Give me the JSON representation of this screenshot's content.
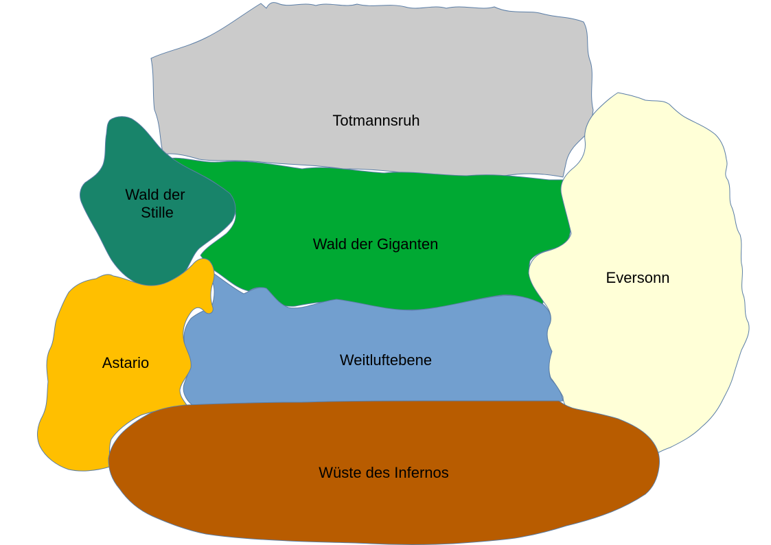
{
  "map": {
    "regions": [
      {
        "id": "totmannsruh",
        "label_lines": [
          "Totmannsruh"
        ],
        "color": "#cbcbcb"
      },
      {
        "id": "wald-der-giganten",
        "label_lines": [
          "Wald der Giganten"
        ],
        "color": "#00a933"
      },
      {
        "id": "wald-der-stille",
        "label_lines": [
          "Wald der",
          "Stille"
        ],
        "color": "#18846a"
      },
      {
        "id": "weitluftebene",
        "label_lines": [
          "Weitluftebene"
        ],
        "color": "#729fcf"
      },
      {
        "id": "astario",
        "label_lines": [
          "Astario"
        ],
        "color": "#ffbf00"
      },
      {
        "id": "eversonn",
        "label_lines": [
          "Eversonn"
        ],
        "color": "#ffffd7"
      },
      {
        "id": "wueste-des-infernos",
        "label_lines": [
          "Wüste des Infernos"
        ],
        "color": "#b85c00"
      }
    ]
  }
}
